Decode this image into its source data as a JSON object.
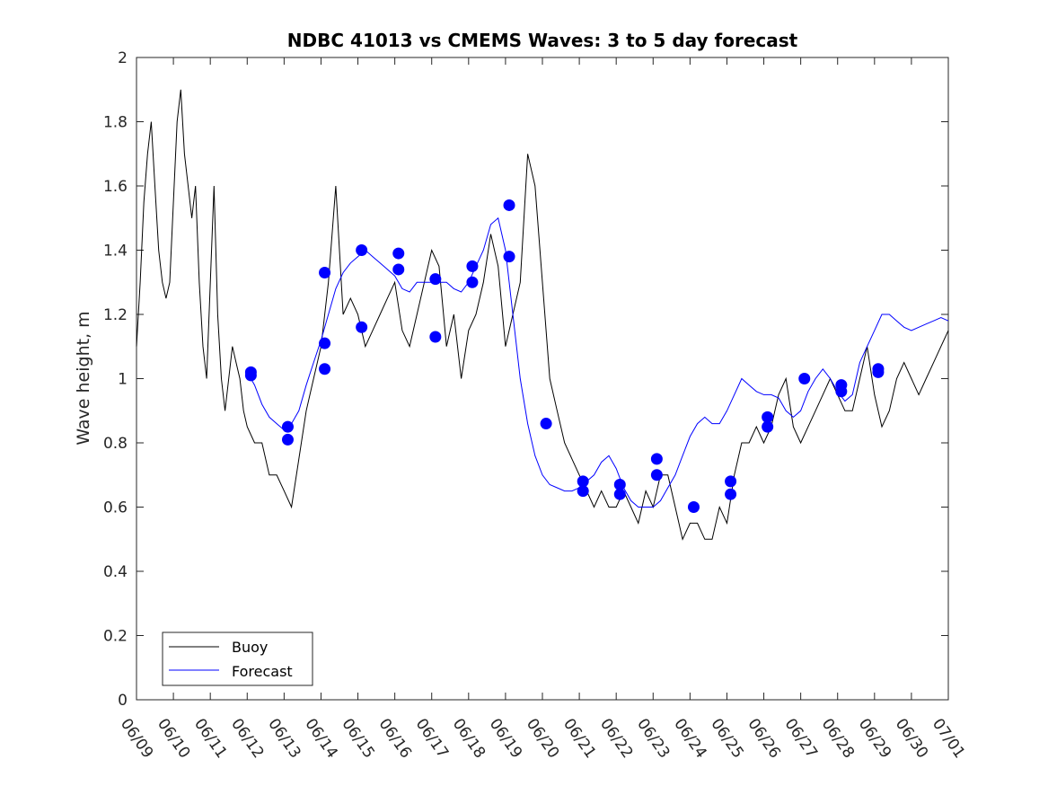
{
  "chart_data": {
    "type": "line",
    "title": "NDBC 41013 vs CMEMS Waves: 3 to 5 day forecast",
    "xlabel": "",
    "ylabel": "Wave height, m",
    "xlim": [
      "06/09",
      "07/01"
    ],
    "ylim": [
      0,
      2
    ],
    "x_tick_labels": [
      "06/09",
      "06/10",
      "06/11",
      "06/12",
      "06/13",
      "06/14",
      "06/15",
      "06/16",
      "06/17",
      "06/18",
      "06/19",
      "06/20",
      "06/21",
      "06/22",
      "06/23",
      "06/24",
      "06/25",
      "06/26",
      "06/27",
      "06/28",
      "06/29",
      "06/30",
      "07/01"
    ],
    "y_ticks": [
      0,
      0.2,
      0.4,
      0.6,
      0.8,
      1,
      1.2,
      1.4,
      1.6,
      1.8,
      2
    ],
    "y_tick_labels": [
      "0",
      "0.2",
      "0.4",
      "0.6",
      "0.8",
      "1",
      "1.2",
      "1.4",
      "1.6",
      "1.8",
      "2"
    ],
    "grid": false,
    "legend_position": "bottom-left",
    "colors": {
      "buoy": "#000000",
      "forecast": "#0000ff"
    },
    "series": [
      {
        "name": "Buoy",
        "x": [
          0,
          0.1,
          0.2,
          0.3,
          0.4,
          0.5,
          0.6,
          0.7,
          0.8,
          0.9,
          1.0,
          1.1,
          1.2,
          1.3,
          1.4,
          1.5,
          1.6,
          1.7,
          1.8,
          1.9,
          2.0,
          2.1,
          2.2,
          2.3,
          2.4,
          2.5,
          2.6,
          2.7,
          2.8,
          2.9,
          3.0,
          3.2,
          3.4,
          3.6,
          3.8,
          4.0,
          4.2,
          4.4,
          4.6,
          4.8,
          5.0,
          5.2,
          5.4,
          5.6,
          5.8,
          6.0,
          6.2,
          6.4,
          6.6,
          6.8,
          7.0,
          7.2,
          7.4,
          7.6,
          7.8,
          8.0,
          8.2,
          8.4,
          8.6,
          8.8,
          9.0,
          9.2,
          9.4,
          9.6,
          9.8,
          10.0,
          10.2,
          10.4,
          10.6,
          10.8,
          11.0,
          11.2,
          11.4,
          11.6,
          11.8,
          12.0,
          12.2,
          12.4,
          12.6,
          12.8,
          13.0,
          13.2,
          13.4,
          13.6,
          13.8,
          14.0,
          14.2,
          14.4,
          14.6,
          14.8,
          15.0,
          15.2,
          15.4,
          15.6,
          15.8,
          16.0,
          16.2,
          16.4,
          16.6,
          16.8,
          17.0,
          17.2,
          17.4,
          17.6,
          17.8,
          18.0,
          18.2,
          18.4,
          18.6,
          18.8,
          19.0,
          19.2,
          19.4,
          19.6,
          19.8,
          20.0,
          20.2,
          20.4,
          20.6,
          20.8,
          21.0,
          21.2,
          21.4,
          21.6,
          21.8,
          22.0
        ],
        "y": [
          1.1,
          1.3,
          1.55,
          1.7,
          1.8,
          1.6,
          1.4,
          1.3,
          1.25,
          1.3,
          1.55,
          1.8,
          1.9,
          1.7,
          1.6,
          1.5,
          1.6,
          1.3,
          1.1,
          1.0,
          1.3,
          1.6,
          1.2,
          1.0,
          0.9,
          1.0,
          1.1,
          1.05,
          1.0,
          0.9,
          0.85,
          0.8,
          0.8,
          0.7,
          0.7,
          0.65,
          0.6,
          0.75,
          0.9,
          1.0,
          1.1,
          1.3,
          1.6,
          1.2,
          1.25,
          1.2,
          1.1,
          1.15,
          1.2,
          1.25,
          1.3,
          1.15,
          1.1,
          1.2,
          1.3,
          1.4,
          1.35,
          1.1,
          1.2,
          1.0,
          1.15,
          1.2,
          1.3,
          1.45,
          1.35,
          1.1,
          1.2,
          1.3,
          1.7,
          1.6,
          1.3,
          1.0,
          0.9,
          0.8,
          0.75,
          0.7,
          0.65,
          0.6,
          0.65,
          0.6,
          0.6,
          0.65,
          0.6,
          0.55,
          0.65,
          0.6,
          0.7,
          0.7,
          0.6,
          0.5,
          0.55,
          0.55,
          0.5,
          0.5,
          0.6,
          0.55,
          0.7,
          0.8,
          0.8,
          0.85,
          0.8,
          0.85,
          0.95,
          1.0,
          0.85,
          0.8,
          0.85,
          0.9,
          0.95,
          1.0,
          0.95,
          0.9,
          0.9,
          1.0,
          1.1,
          0.95,
          0.85,
          0.9,
          1.0,
          1.05,
          1.0,
          0.95,
          1.0,
          1.05,
          1.1,
          1.15
        ]
      },
      {
        "name": "Forecast",
        "x": [
          3.0,
          3.2,
          3.4,
          3.6,
          3.8,
          4.0,
          4.2,
          4.4,
          4.6,
          4.8,
          5.0,
          5.2,
          5.4,
          5.6,
          5.8,
          6.0,
          6.2,
          6.4,
          6.6,
          6.8,
          7.0,
          7.2,
          7.4,
          7.6,
          7.8,
          8.0,
          8.2,
          8.4,
          8.6,
          8.8,
          9.0,
          9.2,
          9.4,
          9.6,
          9.8,
          10.0,
          10.2,
          10.4,
          10.6,
          10.8,
          11.0,
          11.2,
          11.4,
          11.6,
          11.8,
          12.0,
          12.2,
          12.4,
          12.6,
          12.8,
          13.0,
          13.2,
          13.4,
          13.6,
          13.8,
          14.0,
          14.2,
          14.4,
          14.6,
          14.8,
          15.0,
          15.2,
          15.4,
          15.6,
          15.8,
          16.0,
          16.2,
          16.4,
          16.6,
          16.8,
          17.0,
          17.2,
          17.4,
          17.6,
          17.8,
          18.0,
          18.2,
          18.4,
          18.6,
          18.8,
          19.0,
          19.2,
          19.4,
          19.6,
          19.8,
          20.0,
          20.2,
          20.4,
          20.6,
          20.8,
          21.0,
          21.2,
          21.4,
          21.6,
          21.8,
          22.0
        ],
        "y": [
          1.02,
          0.98,
          0.92,
          0.88,
          0.86,
          0.84,
          0.86,
          0.9,
          0.98,
          1.05,
          1.12,
          1.2,
          1.28,
          1.33,
          1.36,
          1.38,
          1.4,
          1.38,
          1.36,
          1.34,
          1.32,
          1.28,
          1.27,
          1.3,
          1.3,
          1.3,
          1.3,
          1.3,
          1.28,
          1.27,
          1.3,
          1.35,
          1.4,
          1.48,
          1.5,
          1.4,
          1.2,
          1.0,
          0.86,
          0.76,
          0.7,
          0.67,
          0.66,
          0.65,
          0.65,
          0.66,
          0.68,
          0.7,
          0.74,
          0.76,
          0.72,
          0.66,
          0.62,
          0.6,
          0.6,
          0.6,
          0.62,
          0.66,
          0.7,
          0.76,
          0.82,
          0.86,
          0.88,
          0.86,
          0.86,
          0.9,
          0.95,
          1.0,
          0.98,
          0.96,
          0.95,
          0.95,
          0.94,
          0.9,
          0.88,
          0.9,
          0.96,
          1.0,
          1.03,
          1.0,
          0.96,
          0.93,
          0.95,
          1.05,
          1.1,
          1.15,
          1.2,
          1.2,
          1.18,
          1.16,
          1.15,
          1.16,
          1.17,
          1.18,
          1.19,
          1.18
        ]
      }
    ],
    "forecast_markers": {
      "x": [
        3.1,
        3.1,
        4.1,
        4.1,
        5.1,
        5.1,
        5.1,
        6.1,
        6.1,
        7.1,
        7.1,
        8.1,
        8.1,
        9.1,
        9.1,
        10.1,
        10.1,
        11.1,
        12.1,
        12.1,
        13.1,
        13.1,
        14.1,
        14.1,
        15.1,
        16.1,
        16.1,
        17.1,
        17.1,
        18.1,
        19.1,
        19.1,
        20.1,
        20.1
      ],
      "y": [
        1.02,
        1.01,
        0.85,
        0.81,
        1.11,
        1.03,
        1.33,
        1.16,
        1.4,
        1.34,
        1.39,
        1.13,
        1.31,
        1.3,
        1.35,
        1.54,
        1.38,
        0.86,
        0.68,
        0.65,
        0.67,
        0.64,
        0.75,
        0.7,
        0.6,
        0.68,
        0.64,
        0.88,
        0.85,
        1.0,
        0.98,
        0.96,
        1.03,
        1.02
      ]
    }
  }
}
